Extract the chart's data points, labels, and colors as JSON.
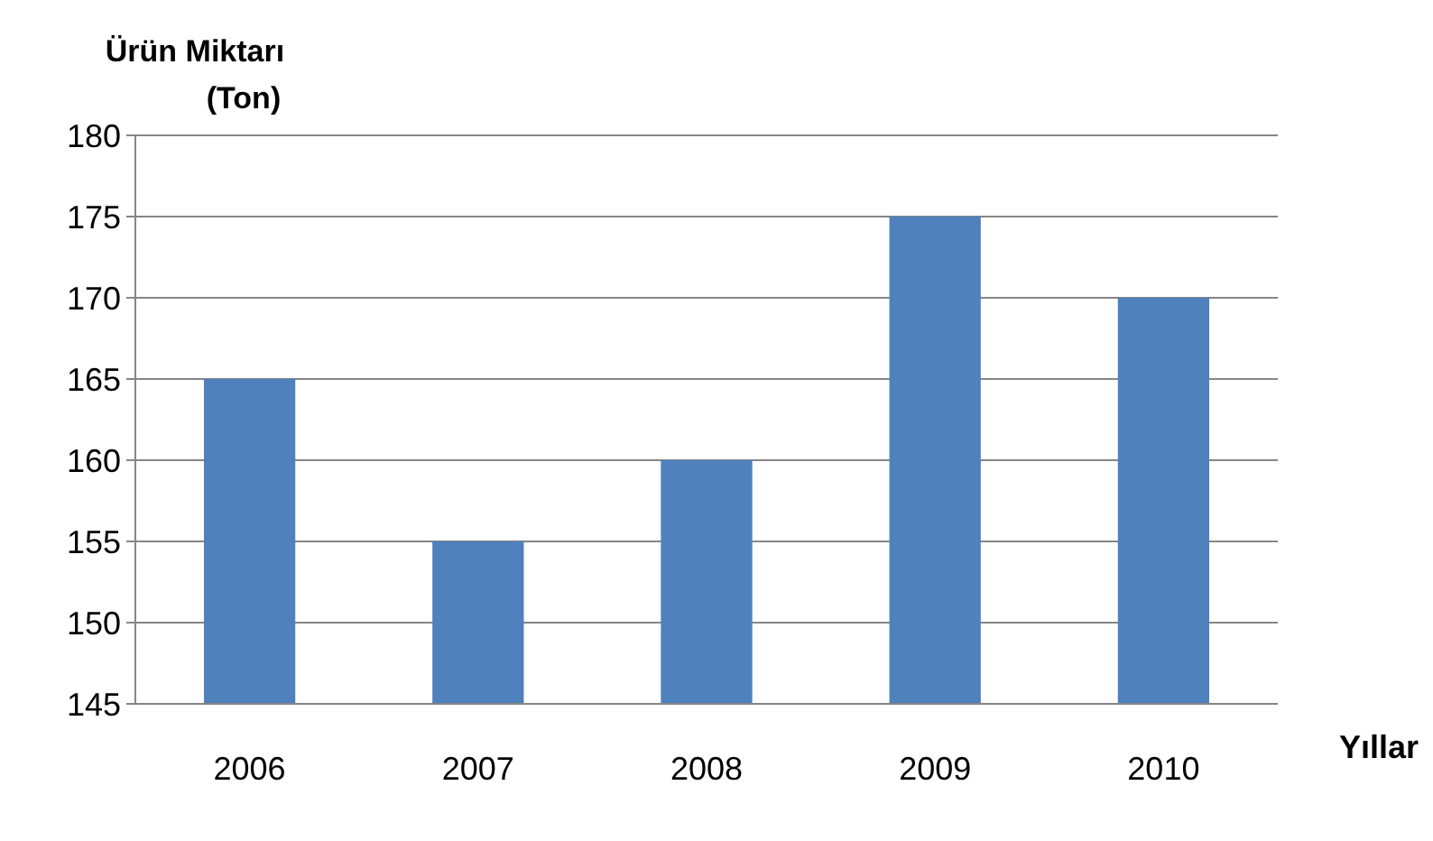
{
  "chart_data": {
    "type": "bar",
    "ylabel": "Ürün Miktarı (Ton)",
    "xlabel": "Yıllar",
    "categories": [
      "2006",
      "2007",
      "2008",
      "2009",
      "2010"
    ],
    "values": [
      165,
      155,
      160,
      175,
      170
    ],
    "color": "#4f81bd",
    "ylim": [
      145,
      180
    ],
    "yticks": [
      145,
      150,
      155,
      160,
      165,
      170,
      175,
      180
    ],
    "grid": "y"
  }
}
